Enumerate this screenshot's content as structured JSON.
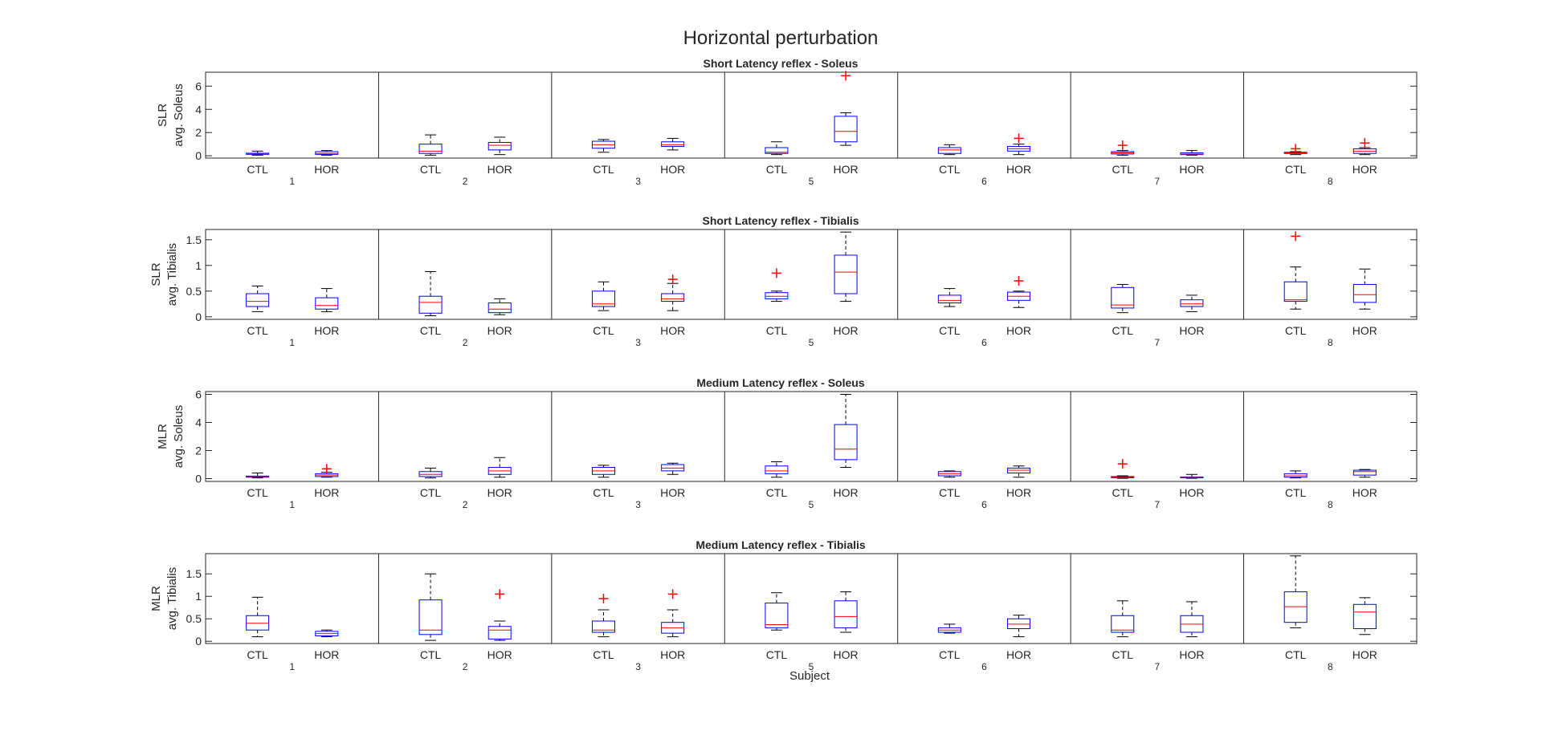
{
  "figure": {
    "suptitle": "Horizontal perturbation",
    "xlabel": "Subject"
  },
  "colors": {
    "box": "#0000ff",
    "median": "#ff0000",
    "outlier": "#ff0000",
    "whisker": "#000000",
    "axis": "#262626"
  },
  "chart_data": [
    {
      "type": "box",
      "title": "Short Latency reflex - Soleus",
      "ylabel": [
        "SLR",
        "avg. Soleus"
      ],
      "ylim": [
        -0.2,
        7.2
      ],
      "yticks": [
        0,
        2,
        4,
        6
      ],
      "subjects": [
        "1",
        "2",
        "3",
        "5",
        "6",
        "7",
        "8"
      ],
      "conditions": [
        "CTL",
        "HOR"
      ],
      "boxes": [
        [
          {
            "min": 0.05,
            "q1": 0.12,
            "med": 0.17,
            "q3": 0.22,
            "max": 0.4,
            "outliers": []
          },
          {
            "min": 0.05,
            "q1": 0.12,
            "med": 0.2,
            "q3": 0.35,
            "max": 0.45,
            "outliers": []
          }
        ],
        [
          {
            "min": 0.05,
            "q1": 0.2,
            "med": 0.4,
            "q3": 1.0,
            "max": 1.8,
            "outliers": []
          },
          {
            "min": 0.1,
            "q1": 0.5,
            "med": 0.9,
            "q3": 1.15,
            "max": 1.6,
            "outliers": []
          }
        ],
        [
          {
            "min": 0.3,
            "q1": 0.65,
            "med": 0.95,
            "q3": 1.25,
            "max": 1.4,
            "outliers": []
          },
          {
            "min": 0.5,
            "q1": 0.8,
            "med": 0.95,
            "q3": 1.2,
            "max": 1.5,
            "outliers": []
          }
        ],
        [
          {
            "min": 0.1,
            "q1": 0.2,
            "med": 0.3,
            "q3": 0.7,
            "max": 1.2,
            "outliers": []
          },
          {
            "min": 0.9,
            "q1": 1.2,
            "med": 2.1,
            "q3": 3.4,
            "max": 3.7,
            "outliers": [
              6.9
            ]
          }
        ],
        [
          {
            "min": 0.1,
            "q1": 0.2,
            "med": 0.5,
            "q3": 0.7,
            "max": 0.95,
            "outliers": []
          },
          {
            "min": 0.1,
            "q1": 0.4,
            "med": 0.6,
            "q3": 0.8,
            "max": 1.0,
            "outliers": [
              1.5
            ]
          }
        ],
        [
          {
            "min": 0.05,
            "q1": 0.15,
            "med": 0.25,
            "q3": 0.35,
            "max": 0.45,
            "outliers": [
              0.9
            ]
          },
          {
            "min": 0.05,
            "q1": 0.1,
            "med": 0.15,
            "q3": 0.25,
            "max": 0.45,
            "outliers": []
          }
        ],
        [
          {
            "min": 0.1,
            "q1": 0.2,
            "med": 0.25,
            "q3": 0.3,
            "max": 0.35,
            "outliers": [
              0.6
            ]
          },
          {
            "min": 0.1,
            "q1": 0.2,
            "med": 0.4,
            "q3": 0.6,
            "max": 0.7,
            "outliers": [
              1.1
            ]
          }
        ]
      ]
    },
    {
      "type": "box",
      "title": "Short Latency reflex - Tibialis",
      "ylabel": [
        "SLR",
        "avg. Tibialis"
      ],
      "ylim": [
        -0.05,
        1.7
      ],
      "yticks": [
        0,
        0.5,
        1,
        1.5
      ],
      "subjects": [
        "1",
        "2",
        "3",
        "5",
        "6",
        "7",
        "8"
      ],
      "conditions": [
        "CTL",
        "HOR"
      ],
      "boxes": [
        [
          {
            "min": 0.1,
            "q1": 0.2,
            "med": 0.3,
            "q3": 0.45,
            "max": 0.6,
            "outliers": []
          },
          {
            "min": 0.1,
            "q1": 0.15,
            "med": 0.22,
            "q3": 0.37,
            "max": 0.55,
            "outliers": []
          }
        ],
        [
          {
            "min": 0.02,
            "q1": 0.07,
            "med": 0.28,
            "q3": 0.4,
            "max": 0.88,
            "outliers": []
          },
          {
            "min": 0.04,
            "q1": 0.08,
            "med": 0.15,
            "q3": 0.27,
            "max": 0.35,
            "outliers": []
          }
        ],
        [
          {
            "min": 0.12,
            "q1": 0.2,
            "med": 0.25,
            "q3": 0.5,
            "max": 0.68,
            "outliers": []
          },
          {
            "min": 0.12,
            "q1": 0.3,
            "med": 0.35,
            "q3": 0.45,
            "max": 0.65,
            "outliers": [
              0.73
            ]
          }
        ],
        [
          {
            "min": 0.3,
            "q1": 0.35,
            "med": 0.4,
            "q3": 0.47,
            "max": 0.5,
            "outliers": [
              0.85
            ]
          },
          {
            "min": 0.3,
            "q1": 0.45,
            "med": 0.87,
            "q3": 1.2,
            "max": 1.65,
            "outliers": []
          }
        ],
        [
          {
            "min": 0.2,
            "q1": 0.27,
            "med": 0.32,
            "q3": 0.42,
            "max": 0.55,
            "outliers": []
          },
          {
            "min": 0.18,
            "q1": 0.32,
            "med": 0.4,
            "q3": 0.48,
            "max": 0.5,
            "outliers": [
              0.7
            ]
          }
        ],
        [
          {
            "min": 0.08,
            "q1": 0.17,
            "med": 0.23,
            "q3": 0.57,
            "max": 0.63,
            "outliers": []
          },
          {
            "min": 0.1,
            "q1": 0.2,
            "med": 0.25,
            "q3": 0.33,
            "max": 0.42,
            "outliers": []
          }
        ],
        [
          {
            "min": 0.15,
            "q1": 0.3,
            "med": 0.33,
            "q3": 0.68,
            "max": 0.97,
            "outliers": [
              1.57
            ]
          },
          {
            "min": 0.15,
            "q1": 0.28,
            "med": 0.43,
            "q3": 0.63,
            "max": 0.93,
            "outliers": []
          }
        ]
      ]
    },
    {
      "type": "box",
      "title": "Medium Latency reflex - Soleus",
      "ylabel": [
        "MLR",
        "avg. Soleus"
      ],
      "ylim": [
        -0.2,
        6.2
      ],
      "yticks": [
        0,
        2,
        4,
        6
      ],
      "subjects": [
        "1",
        "2",
        "3",
        "5",
        "6",
        "7",
        "8"
      ],
      "conditions": [
        "CTL",
        "HOR"
      ],
      "boxes": [
        [
          {
            "min": 0.05,
            "q1": 0.1,
            "med": 0.14,
            "q3": 0.18,
            "max": 0.4,
            "outliers": []
          },
          {
            "min": 0.1,
            "q1": 0.15,
            "med": 0.25,
            "q3": 0.35,
            "max": 0.45,
            "outliers": [
              0.7
            ]
          }
        ],
        [
          {
            "min": 0.05,
            "q1": 0.15,
            "med": 0.3,
            "q3": 0.5,
            "max": 0.75,
            "outliers": []
          },
          {
            "min": 0.1,
            "q1": 0.3,
            "med": 0.55,
            "q3": 0.8,
            "max": 1.5,
            "outliers": []
          }
        ],
        [
          {
            "min": 0.1,
            "q1": 0.3,
            "med": 0.55,
            "q3": 0.8,
            "max": 0.95,
            "outliers": []
          },
          {
            "min": 0.3,
            "q1": 0.55,
            "med": 0.75,
            "q3": 1.0,
            "max": 1.1,
            "outliers": []
          }
        ],
        [
          {
            "min": 0.1,
            "q1": 0.35,
            "med": 0.55,
            "q3": 0.9,
            "max": 1.2,
            "outliers": []
          },
          {
            "min": 0.8,
            "q1": 1.35,
            "med": 2.1,
            "q3": 3.85,
            "max": 6.0,
            "outliers": []
          }
        ],
        [
          {
            "min": 0.1,
            "q1": 0.2,
            "med": 0.35,
            "q3": 0.5,
            "max": 0.55,
            "outliers": []
          },
          {
            "min": 0.1,
            "q1": 0.4,
            "med": 0.6,
            "q3": 0.75,
            "max": 0.9,
            "outliers": []
          }
        ],
        [
          {
            "min": 0.02,
            "q1": 0.06,
            "med": 0.1,
            "q3": 0.15,
            "max": 0.2,
            "outliers": [
              1.05
            ]
          },
          {
            "min": 0.02,
            "q1": 0.05,
            "med": 0.08,
            "q3": 0.12,
            "max": 0.3,
            "outliers": []
          }
        ],
        [
          {
            "min": 0.05,
            "q1": 0.1,
            "med": 0.2,
            "q3": 0.35,
            "max": 0.55,
            "outliers": []
          },
          {
            "min": 0.1,
            "q1": 0.25,
            "med": 0.5,
            "q3": 0.6,
            "max": 0.65,
            "outliers": []
          }
        ]
      ]
    },
    {
      "type": "box",
      "title": "Medium Latency reflex - Tibialis",
      "ylabel": [
        "MLR",
        "avg. Tibialis"
      ],
      "ylim": [
        -0.05,
        1.95
      ],
      "yticks": [
        0,
        0.5,
        1,
        1.5
      ],
      "subjects": [
        "1",
        "2",
        "3",
        "5",
        "6",
        "7",
        "8"
      ],
      "conditions": [
        "CTL",
        "HOR"
      ],
      "boxes": [
        [
          {
            "min": 0.1,
            "q1": 0.25,
            "med": 0.4,
            "q3": 0.57,
            "max": 0.98,
            "outliers": []
          },
          {
            "min": 0.1,
            "q1": 0.12,
            "med": 0.17,
            "q3": 0.22,
            "max": 0.25,
            "outliers": []
          }
        ],
        [
          {
            "min": 0.02,
            "q1": 0.15,
            "med": 0.25,
            "q3": 0.92,
            "max": 1.5,
            "outliers": []
          },
          {
            "min": 0.02,
            "q1": 0.05,
            "med": 0.25,
            "q3": 0.33,
            "max": 0.45,
            "outliers": [
              1.05
            ]
          }
        ],
        [
          {
            "min": 0.1,
            "q1": 0.2,
            "med": 0.25,
            "q3": 0.45,
            "max": 0.7,
            "outliers": [
              0.95
            ]
          },
          {
            "min": 0.1,
            "q1": 0.18,
            "med": 0.3,
            "q3": 0.42,
            "max": 0.7,
            "outliers": [
              1.05
            ]
          }
        ],
        [
          {
            "min": 0.25,
            "q1": 0.3,
            "med": 0.37,
            "q3": 0.85,
            "max": 1.08,
            "outliers": []
          },
          {
            "min": 0.2,
            "q1": 0.3,
            "med": 0.55,
            "q3": 0.9,
            "max": 1.1,
            "outliers": []
          }
        ],
        [
          {
            "min": 0.18,
            "q1": 0.2,
            "med": 0.25,
            "q3": 0.3,
            "max": 0.38,
            "outliers": []
          },
          {
            "min": 0.1,
            "q1": 0.28,
            "med": 0.38,
            "q3": 0.5,
            "max": 0.58,
            "outliers": []
          }
        ],
        [
          {
            "min": 0.1,
            "q1": 0.2,
            "med": 0.25,
            "q3": 0.57,
            "max": 0.9,
            "outliers": []
          },
          {
            "min": 0.1,
            "q1": 0.2,
            "med": 0.38,
            "q3": 0.57,
            "max": 0.88,
            "outliers": []
          }
        ],
        [
          {
            "min": 0.3,
            "q1": 0.42,
            "med": 0.77,
            "q3": 1.1,
            "max": 1.9,
            "outliers": []
          },
          {
            "min": 0.15,
            "q1": 0.28,
            "med": 0.65,
            "q3": 0.82,
            "max": 0.97,
            "outliers": []
          }
        ]
      ]
    }
  ]
}
